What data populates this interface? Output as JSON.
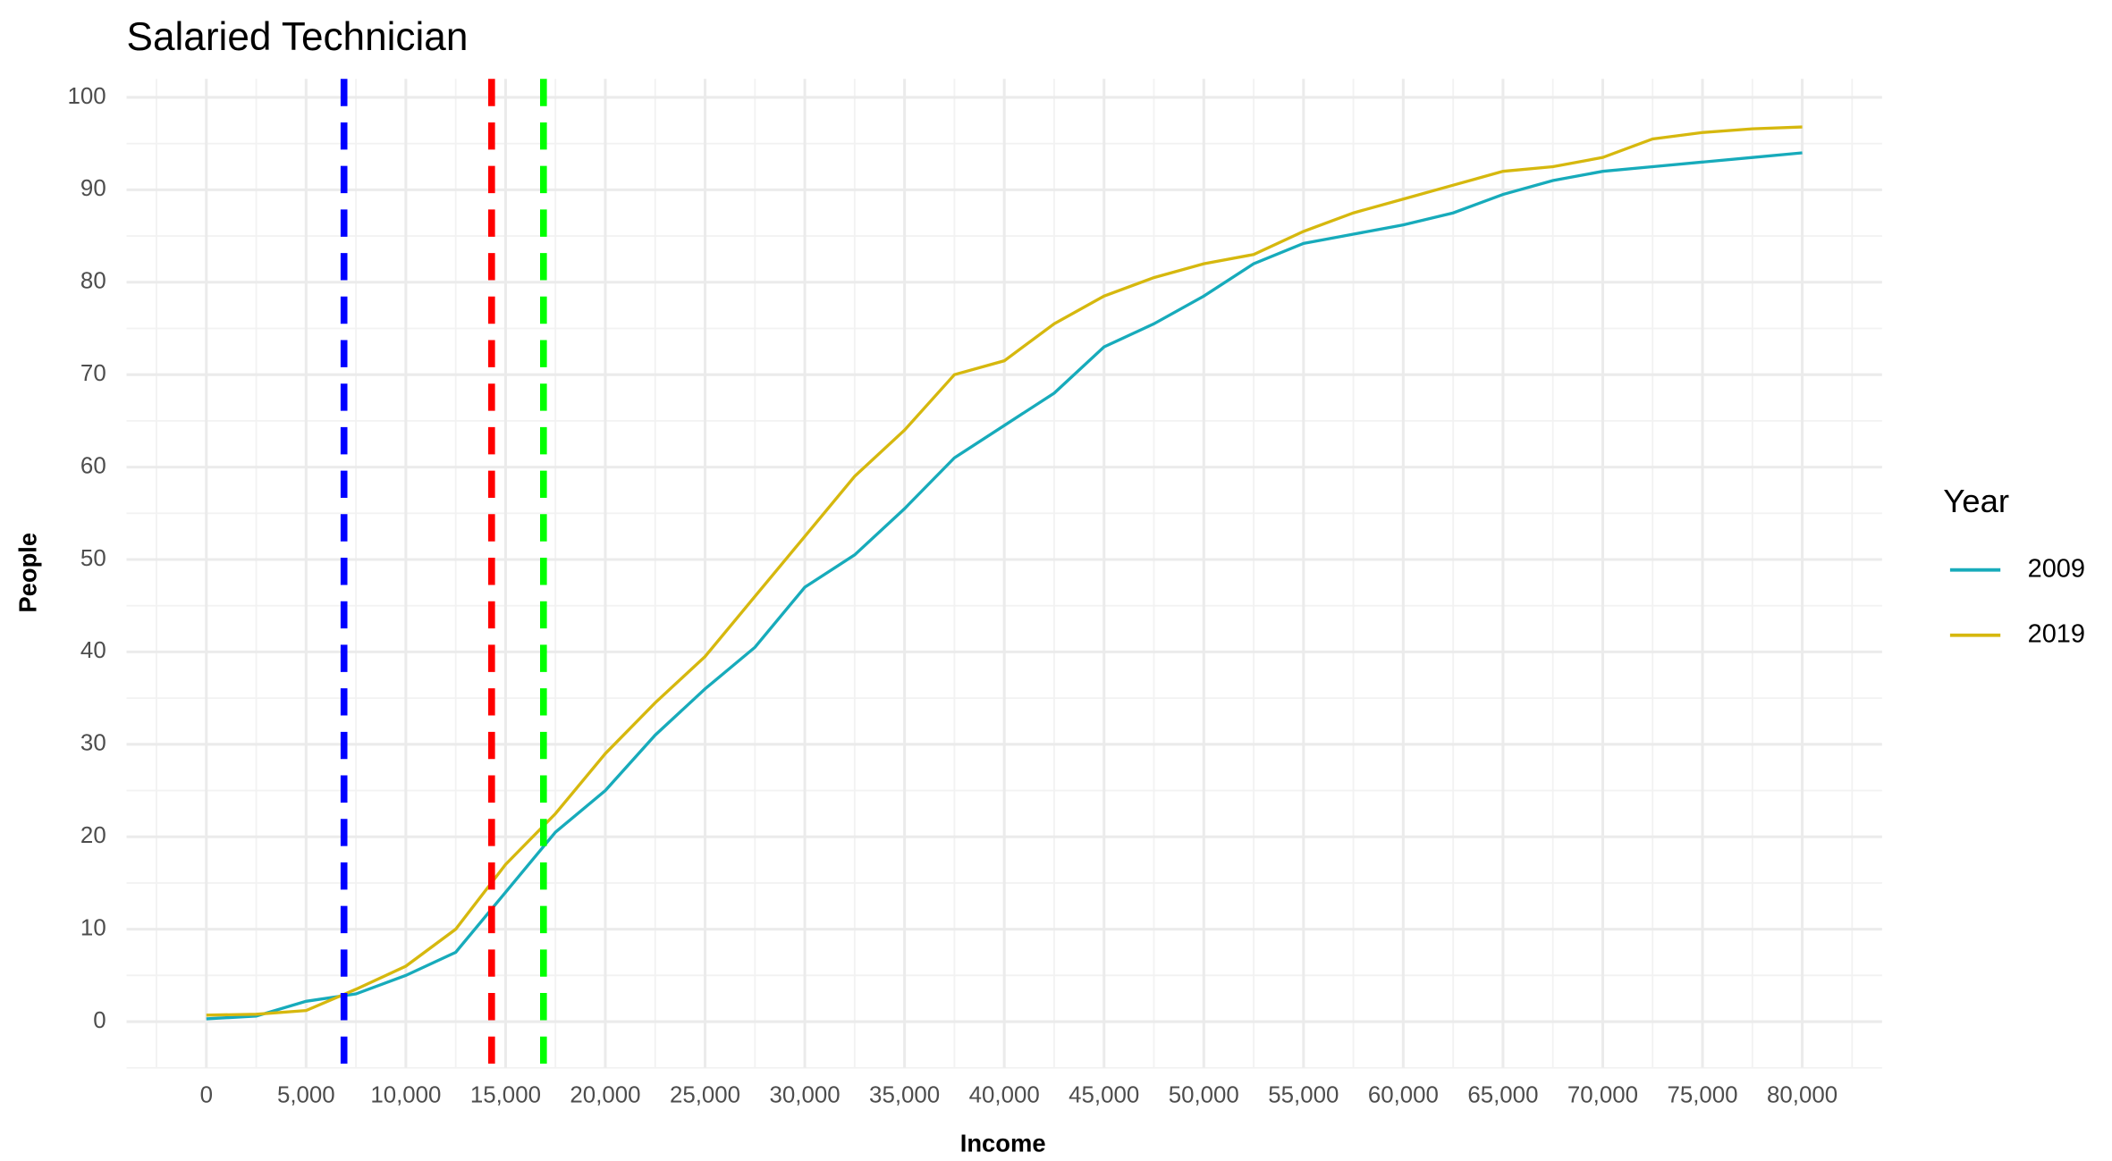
{
  "chart_data": {
    "type": "line",
    "title": "Salaried Technician",
    "x_label": "Income",
    "y_label": "People",
    "legend_title": "Year",
    "legend_position": "right",
    "grid": true,
    "x": [
      0,
      2500,
      5000,
      7500,
      10000,
      12500,
      15000,
      17500,
      20000,
      22500,
      25000,
      27500,
      30000,
      32500,
      35000,
      37500,
      40000,
      42500,
      45000,
      47500,
      50000,
      52500,
      55000,
      57500,
      60000,
      62500,
      65000,
      67500,
      70000,
      72500,
      75000,
      77500,
      80000
    ],
    "series": [
      {
        "name": "2009",
        "color": "#17abbb",
        "values": [
          0.3,
          0.6,
          2.2,
          3,
          5,
          7.5,
          14,
          20.5,
          25,
          31,
          36,
          40.5,
          47,
          50.5,
          55.5,
          61,
          64.5,
          68,
          73,
          75.5,
          78.5,
          82,
          84.2,
          85.2,
          86.2,
          87.5,
          89.5,
          91,
          92,
          92.5,
          93,
          93.5,
          94
        ]
      },
      {
        "name": "2019",
        "color": "#d6b80e",
        "values": [
          0.7,
          0.8,
          1.2,
          3.5,
          6,
          10,
          17,
          22.5,
          29,
          34.5,
          39.5,
          46,
          52.5,
          59,
          64,
          70,
          71.5,
          75.5,
          78.5,
          80.5,
          82,
          83,
          85.5,
          87.5,
          89,
          90.5,
          92,
          92.5,
          93.5,
          95.5,
          96.2,
          96.6,
          96.8
        ]
      }
    ],
    "reference_lines": [
      {
        "x": 6900,
        "color": "#0000ff"
      },
      {
        "x": 14300,
        "color": "#ff0000"
      },
      {
        "x": 16900,
        "color": "#00ff00"
      }
    ],
    "xlim": [
      -4000,
      84000
    ],
    "ylim": [
      -5,
      102
    ],
    "xticks": [
      0,
      {
        "value": 5000,
        "label": "5,000"
      },
      {
        "value": 10000,
        "label": "10,000"
      },
      {
        "value": 15000,
        "label": "15,000"
      },
      {
        "value": 20000,
        "label": "20,000"
      },
      {
        "value": 25000,
        "label": "25,000"
      },
      {
        "value": 30000,
        "label": "30,000"
      },
      {
        "value": 35000,
        "label": "35,000"
      },
      {
        "value": 40000,
        "label": "40,000"
      },
      {
        "value": 45000,
        "label": "45,000"
      },
      {
        "value": 50000,
        "label": "50,000"
      },
      {
        "value": 55000,
        "label": "55,000"
      },
      {
        "value": 60000,
        "label": "60,000"
      },
      {
        "value": 65000,
        "label": "65,000"
      },
      {
        "value": 70000,
        "label": "70,000"
      },
      {
        "value": 75000,
        "label": "75,000"
      },
      {
        "value": 80000,
        "label": "80,000"
      }
    ],
    "yticks": [
      0,
      10,
      20,
      30,
      40,
      50,
      60,
      70,
      80,
      90,
      100
    ]
  }
}
